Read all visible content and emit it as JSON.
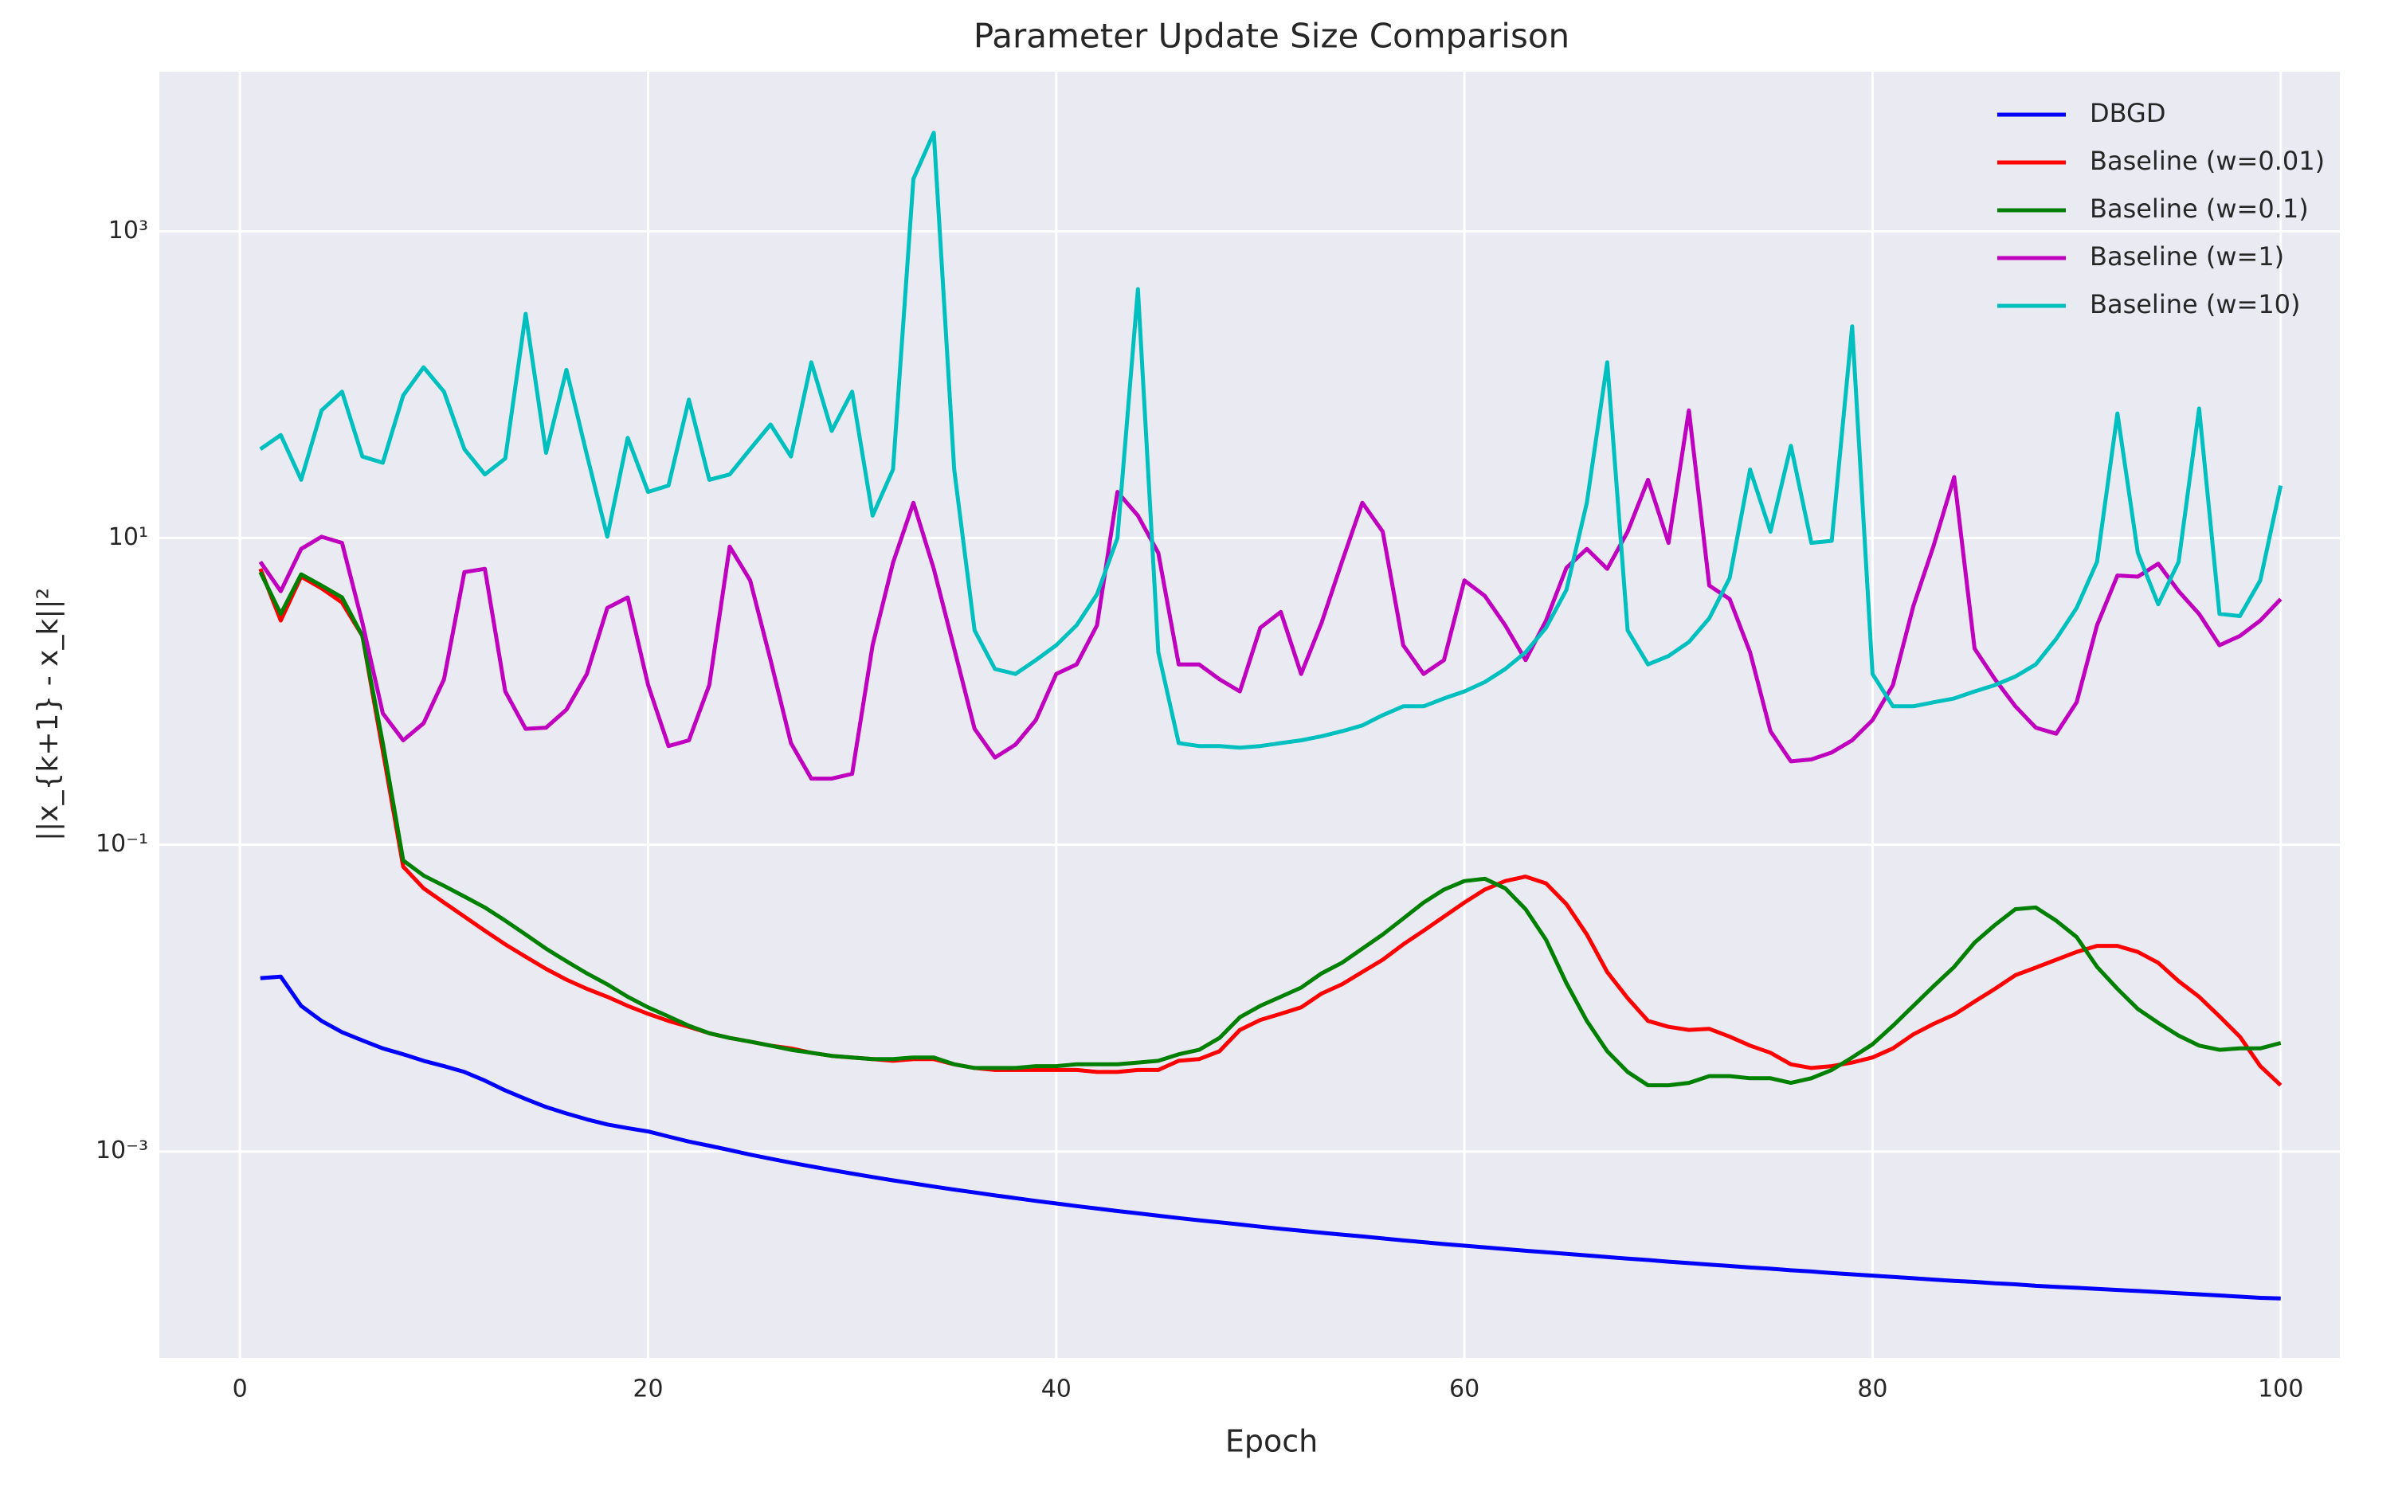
{
  "chart_data": {
    "type": "line",
    "title": "Parameter Update Size Comparison",
    "x_label": "Epoch",
    "y_label": "||x_{k+1} - x_k||²",
    "yscale": "log",
    "grid": true,
    "legend": "upper right",
    "xlim": [
      -3.95,
      102.9
    ],
    "xticks": [
      0,
      20,
      40,
      60,
      80,
      100
    ],
    "ylim": [
      4.5e-05,
      11000
    ],
    "yticks": [
      {
        "value": 0.001,
        "label": "10⁻³"
      },
      {
        "value": 0.1,
        "label": "10⁻¹"
      },
      {
        "value": 10,
        "label": "10¹"
      },
      {
        "value": 1000,
        "label": "10³"
      }
    ],
    "x": [
      1,
      2,
      3,
      4,
      5,
      6,
      7,
      8,
      9,
      10,
      11,
      12,
      13,
      14,
      15,
      16,
      17,
      18,
      19,
      20,
      21,
      22,
      23,
      24,
      25,
      26,
      27,
      28,
      29,
      30,
      31,
      32,
      33,
      34,
      35,
      36,
      37,
      38,
      39,
      40,
      41,
      42,
      43,
      44,
      45,
      46,
      47,
      48,
      49,
      50,
      51,
      52,
      53,
      54,
      55,
      56,
      57,
      58,
      59,
      60,
      61,
      62,
      63,
      64,
      65,
      66,
      67,
      68,
      69,
      70,
      71,
      72,
      73,
      74,
      75,
      76,
      77,
      78,
      79,
      80,
      81,
      82,
      83,
      84,
      85,
      86,
      87,
      88,
      89,
      90,
      91,
      92,
      93,
      94,
      95,
      96,
      97,
      98,
      99,
      100
    ],
    "series": [
      {
        "name": "DBGD",
        "color": "#0000ff",
        "values": [
          0.0135,
          0.0138,
          0.0089,
          0.0071,
          0.006,
          0.0053,
          0.0047,
          0.0043,
          0.0039,
          0.0036,
          0.0033,
          0.0029,
          0.0025,
          0.0022,
          0.00195,
          0.00177,
          0.00162,
          0.0015,
          0.00142,
          0.00135,
          0.00125,
          0.00116,
          0.00109,
          0.00102,
          0.000953,
          0.000897,
          0.000845,
          0.000799,
          0.000756,
          0.000717,
          0.000681,
          0.000648,
          0.000618,
          0.00059,
          0.000564,
          0.00054,
          0.000517,
          0.000496,
          0.000476,
          0.000458,
          0.00044,
          0.000424,
          0.000409,
          0.000395,
          0.000381,
          0.000368,
          0.000356,
          0.000345,
          0.000334,
          0.000323,
          0.000313,
          0.000304,
          0.000295,
          0.000287,
          0.000279,
          0.000271,
          0.000263,
          0.000256,
          0.000249,
          0.000243,
          0.000237,
          0.000231,
          0.000225,
          0.00022,
          0.000215,
          0.00021,
          0.000205,
          0.0002,
          0.000196,
          0.000191,
          0.000187,
          0.000183,
          0.000179,
          0.000175,
          0.000172,
          0.000168,
          0.000165,
          0.000161,
          0.000158,
          0.000155,
          0.000152,
          0.000149,
          0.000146,
          0.000143,
          0.000141,
          0.000138,
          0.000136,
          0.000133,
          0.000131,
          0.000129,
          0.000127,
          0.000125,
          0.000123,
          0.000121,
          0.000119,
          0.000117,
          0.000115,
          0.000113,
          0.000111,
          0.00011
        ]
      },
      {
        "name": "Baseline (w=0.01)",
        "color": "#ff0000",
        "values": [
          6.3,
          2.9,
          5.6,
          4.7,
          3.8,
          2.3,
          0.41,
          0.072,
          0.052,
          0.042,
          0.034,
          0.0275,
          0.0224,
          0.0186,
          0.0155,
          0.0132,
          0.0115,
          0.0102,
          0.0089,
          0.0079,
          0.0071,
          0.0065,
          0.0059,
          0.0055,
          0.0052,
          0.0049,
          0.0047,
          0.0044,
          0.0042,
          0.0041,
          0.004,
          0.0039,
          0.004,
          0.004,
          0.0037,
          0.0035,
          0.0034,
          0.0034,
          0.0034,
          0.0034,
          0.0034,
          0.0033,
          0.0033,
          0.0034,
          0.0034,
          0.0039,
          0.004,
          0.0045,
          0.0062,
          0.0072,
          0.0079,
          0.0087,
          0.0107,
          0.0123,
          0.0148,
          0.0178,
          0.0224,
          0.0275,
          0.034,
          0.042,
          0.051,
          0.058,
          0.062,
          0.056,
          0.041,
          0.026,
          0.0148,
          0.01,
          0.0071,
          0.0065,
          0.0062,
          0.0063,
          0.0056,
          0.0049,
          0.0044,
          0.0037,
          0.0035,
          0.0036,
          0.0038,
          0.0041,
          0.0047,
          0.0058,
          0.0068,
          0.0078,
          0.0095,
          0.0115,
          0.0141,
          0.0158,
          0.0178,
          0.02,
          0.0219,
          0.0219,
          0.02,
          0.017,
          0.0129,
          0.0102,
          0.0076,
          0.0056,
          0.0036,
          0.0027
        ]
      },
      {
        "name": "Baseline (w=0.1)",
        "color": "#008000",
        "values": [
          6.0,
          3.2,
          5.8,
          4.9,
          4.1,
          2.3,
          0.46,
          0.079,
          0.063,
          0.054,
          0.046,
          0.039,
          0.032,
          0.026,
          0.021,
          0.0174,
          0.0145,
          0.0123,
          0.0102,
          0.0087,
          0.0076,
          0.0066,
          0.0059,
          0.0055,
          0.0052,
          0.0049,
          0.0046,
          0.0044,
          0.0042,
          0.0041,
          0.004,
          0.004,
          0.0041,
          0.0041,
          0.0037,
          0.0035,
          0.0035,
          0.0035,
          0.0036,
          0.0036,
          0.0037,
          0.0037,
          0.0037,
          0.0038,
          0.0039,
          0.0043,
          0.0046,
          0.0055,
          0.0075,
          0.0089,
          0.0102,
          0.0117,
          0.0145,
          0.017,
          0.021,
          0.026,
          0.033,
          0.042,
          0.051,
          0.058,
          0.06,
          0.052,
          0.038,
          0.024,
          0.0125,
          0.0071,
          0.0045,
          0.0033,
          0.0027,
          0.0027,
          0.0028,
          0.0031,
          0.0031,
          0.003,
          0.003,
          0.0028,
          0.003,
          0.0034,
          0.0041,
          0.005,
          0.0066,
          0.0089,
          0.012,
          0.016,
          0.023,
          0.03,
          0.038,
          0.039,
          0.032,
          0.025,
          0.016,
          0.0115,
          0.0085,
          0.0069,
          0.0057,
          0.0049,
          0.0046,
          0.0047,
          0.0047,
          0.0051
        ]
      },
      {
        "name": "Baseline (w=1)",
        "color": "#bf00bf",
        "values": [
          7.0,
          4.5,
          8.5,
          10.2,
          9.3,
          2.8,
          0.72,
          0.48,
          0.62,
          1.2,
          6.0,
          6.3,
          1.0,
          0.57,
          0.58,
          0.76,
          1.3,
          3.5,
          4.1,
          1.1,
          0.44,
          0.48,
          1.1,
          8.8,
          5.3,
          1.6,
          0.46,
          0.27,
          0.27,
          0.29,
          2.0,
          6.9,
          17,
          6.3,
          1.9,
          0.57,
          0.37,
          0.45,
          0.65,
          1.3,
          1.5,
          2.7,
          20,
          14,
          8,
          1.5,
          1.5,
          1.2,
          1.0,
          2.6,
          3.3,
          1.3,
          2.8,
          7,
          17,
          11,
          2.0,
          1.3,
          1.6,
          5.3,
          4.2,
          2.7,
          1.6,
          2.9,
          6.4,
          8.5,
          6.3,
          11,
          24,
          9.3,
          68,
          4.9,
          4.0,
          1.8,
          0.55,
          0.35,
          0.36,
          0.4,
          0.48,
          0.65,
          1.1,
          3.6,
          9,
          25,
          1.9,
          1.2,
          0.8,
          0.58,
          0.53,
          0.85,
          2.7,
          5.7,
          5.6,
          6.8,
          4.5,
          3.2,
          2.0,
          2.3,
          2.9,
          4.0
        ]
      },
      {
        "name": "Baseline (w=10)",
        "color": "#00bfbf",
        "values": [
          38,
          47,
          24,
          68,
          90,
          34,
          31,
          85,
          130,
          90,
          38,
          26,
          33,
          290,
          36,
          125,
          35,
          10.2,
          45,
          20,
          22,
          80,
          24,
          26,
          38,
          55,
          34,
          140,
          50,
          90,
          14,
          28,
          2200,
          4400,
          28,
          2.5,
          1.4,
          1.3,
          1.6,
          2.0,
          2.7,
          4.3,
          10,
          420,
          1.8,
          0.46,
          0.44,
          0.44,
          0.43,
          0.44,
          0.46,
          0.48,
          0.51,
          0.55,
          0.6,
          0.7,
          0.8,
          0.8,
          0.9,
          1.0,
          1.15,
          1.4,
          1.8,
          2.6,
          4.6,
          17,
          140,
          2.5,
          1.5,
          1.7,
          2.1,
          3.0,
          5.5,
          28,
          11,
          40,
          9.3,
          9.6,
          240,
          1.3,
          0.8,
          0.8,
          0.85,
          0.9,
          1.0,
          1.1,
          1.25,
          1.5,
          2.2,
          3.5,
          7,
          65,
          8,
          3.7,
          7,
          70,
          3.2,
          3.1,
          5.3,
          22
        ]
      }
    ]
  }
}
